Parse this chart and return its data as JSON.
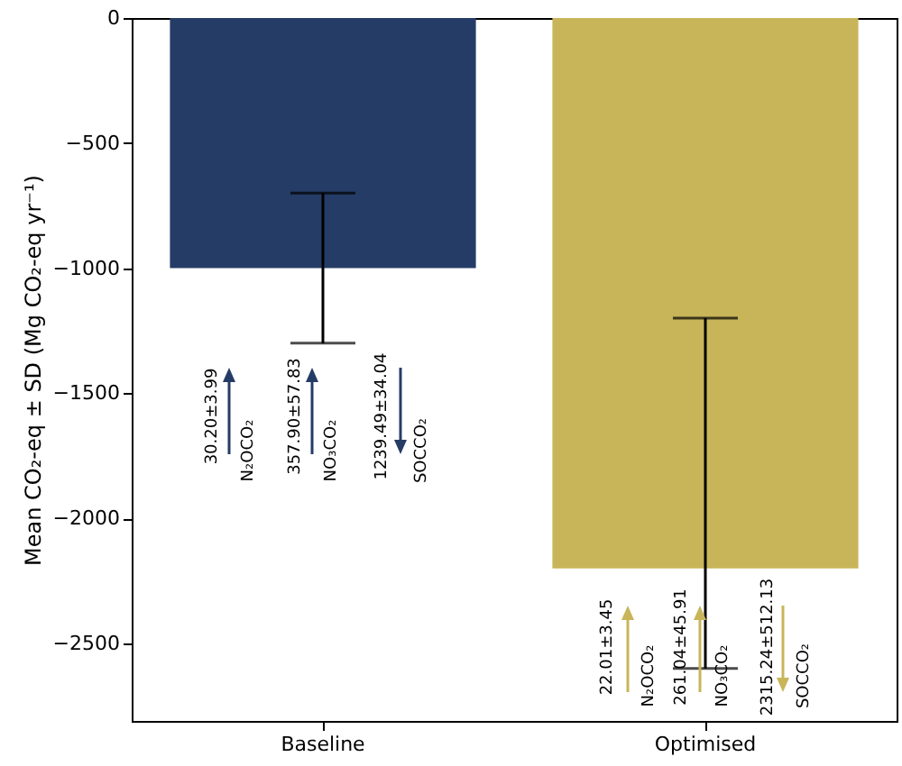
{
  "chart_data": {
    "type": "bar",
    "categories": [
      "Baseline",
      "Optimised"
    ],
    "values": [
      -1000,
      -2200
    ],
    "colors": [
      "#253c66",
      "#c8b55a"
    ],
    "errors": [
      [
        -1300,
        -700
      ],
      [
        -2600,
        -1200
      ]
    ],
    "ylim": [
      -2810,
      0
    ],
    "yticks": [
      0,
      -500,
      -1000,
      -1500,
      -2000,
      -2500
    ],
    "ylabel": "Mean CO₂-eq ± SD (Mg CO₂-eq yr⁻¹)",
    "grid": false,
    "annotations": [
      "30.20±3.99",
      "N₂OCO₂",
      "357.90±57.83",
      "NO₃CO₂",
      "1239.49±34.04",
      "SOCCO₂",
      "22.01±3.45",
      "N₂OCO₂",
      "261.04±45.91",
      "NO₃CO₂",
      "2315.24±512.13",
      "SOCCO₂"
    ]
  }
}
